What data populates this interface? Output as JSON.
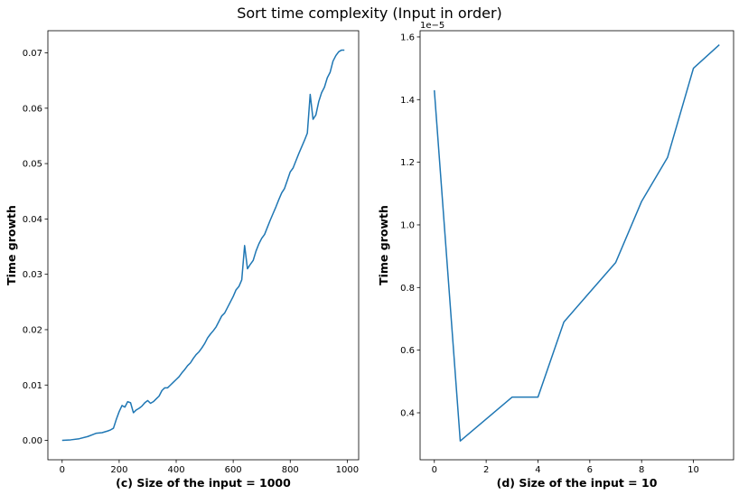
{
  "figure": {
    "suptitle": "Sort time complexity (Input in order)",
    "line_color": "#1f77b4"
  },
  "chart_data": [
    {
      "type": "line",
      "title": "",
      "xlabel": "(c) Size of the input = 1000",
      "ylabel": "Time growth",
      "xlim": [
        -50,
        1040
      ],
      "ylim": [
        -0.0035,
        0.074
      ],
      "xticks": [
        0,
        200,
        400,
        600,
        800,
        1000
      ],
      "xtick_labels": [
        "0",
        "200",
        "400",
        "600",
        "800",
        "1000"
      ],
      "yticks": [
        0.0,
        0.01,
        0.02,
        0.03,
        0.04,
        0.05,
        0.06,
        0.07
      ],
      "ytick_labels": [
        "0.00",
        "0.01",
        "0.02",
        "0.03",
        "0.04",
        "0.05",
        "0.06",
        "0.07"
      ],
      "offset_text": "",
      "grid": false,
      "series": [
        {
          "x": [
            0,
            30,
            60,
            90,
            110,
            120,
            140,
            160,
            170,
            180,
            190,
            200,
            210,
            220,
            230,
            240,
            250,
            260,
            270,
            280,
            290,
            300,
            310,
            320,
            330,
            340,
            350,
            360,
            370,
            380,
            390,
            400,
            410,
            420,
            430,
            440,
            450,
            460,
            470,
            480,
            490,
            500,
            510,
            520,
            530,
            540,
            550,
            560,
            570,
            580,
            590,
            600,
            610,
            620,
            630,
            640,
            650,
            660,
            670,
            680,
            690,
            700,
            710,
            720,
            730,
            740,
            750,
            760,
            770,
            780,
            790,
            800,
            810,
            820,
            830,
            840,
            850,
            860,
            870,
            880,
            890,
            900,
            910,
            920,
            930,
            940,
            950,
            960,
            970,
            980,
            990
          ],
          "y": [
            0.0,
            0.0001,
            0.0003,
            0.0007,
            0.0011,
            0.0013,
            0.0014,
            0.0017,
            0.0019,
            0.0022,
            0.0038,
            0.0052,
            0.0063,
            0.006,
            0.007,
            0.0068,
            0.005,
            0.0055,
            0.0058,
            0.0062,
            0.0068,
            0.0072,
            0.0067,
            0.007,
            0.0075,
            0.008,
            0.009,
            0.0095,
            0.0095,
            0.01,
            0.0105,
            0.011,
            0.0115,
            0.0122,
            0.0128,
            0.0135,
            0.014,
            0.0148,
            0.0155,
            0.016,
            0.0167,
            0.0175,
            0.0185,
            0.0192,
            0.0198,
            0.0205,
            0.0215,
            0.0225,
            0.023,
            0.024,
            0.025,
            0.026,
            0.0272,
            0.0278,
            0.029,
            0.0352,
            0.031,
            0.0318,
            0.0325,
            0.0342,
            0.0355,
            0.0365,
            0.0372,
            0.0385,
            0.0398,
            0.041,
            0.0422,
            0.0435,
            0.0447,
            0.0455,
            0.047,
            0.0485,
            0.0492,
            0.0505,
            0.0518,
            0.053,
            0.0542,
            0.0555,
            0.0625,
            0.058,
            0.0588,
            0.0612,
            0.0628,
            0.0638,
            0.0655,
            0.0665,
            0.0685,
            0.0695,
            0.0702,
            0.0705,
            0.0705
          ]
        }
      ]
    },
    {
      "type": "line",
      "title": "",
      "xlabel": "(d) Size of the input = 10",
      "ylabel": "Time growth",
      "xlim": [
        -0.55,
        11.55
      ],
      "ylim": [
        0.25,
        1.62
      ],
      "xticks": [
        0,
        2,
        4,
        6,
        8,
        10
      ],
      "xtick_labels": [
        "0",
        "2",
        "4",
        "6",
        "8",
        "10"
      ],
      "yticks": [
        0.4,
        0.6,
        0.8,
        1.0,
        1.2,
        1.4,
        1.6
      ],
      "ytick_labels": [
        "0.4",
        "0.6",
        "0.8",
        "1.0",
        "1.2",
        "1.4",
        "1.6"
      ],
      "offset_text": "1e−5",
      "grid": false,
      "series": [
        {
          "x": [
            0,
            1,
            2,
            3,
            4,
            5,
            6,
            7,
            8,
            9,
            10,
            11
          ],
          "y": [
            1.43,
            0.31,
            0.38,
            0.45,
            0.45,
            0.69,
            0.785,
            0.88,
            1.075,
            1.215,
            1.5,
            1.575
          ]
        }
      ]
    }
  ]
}
